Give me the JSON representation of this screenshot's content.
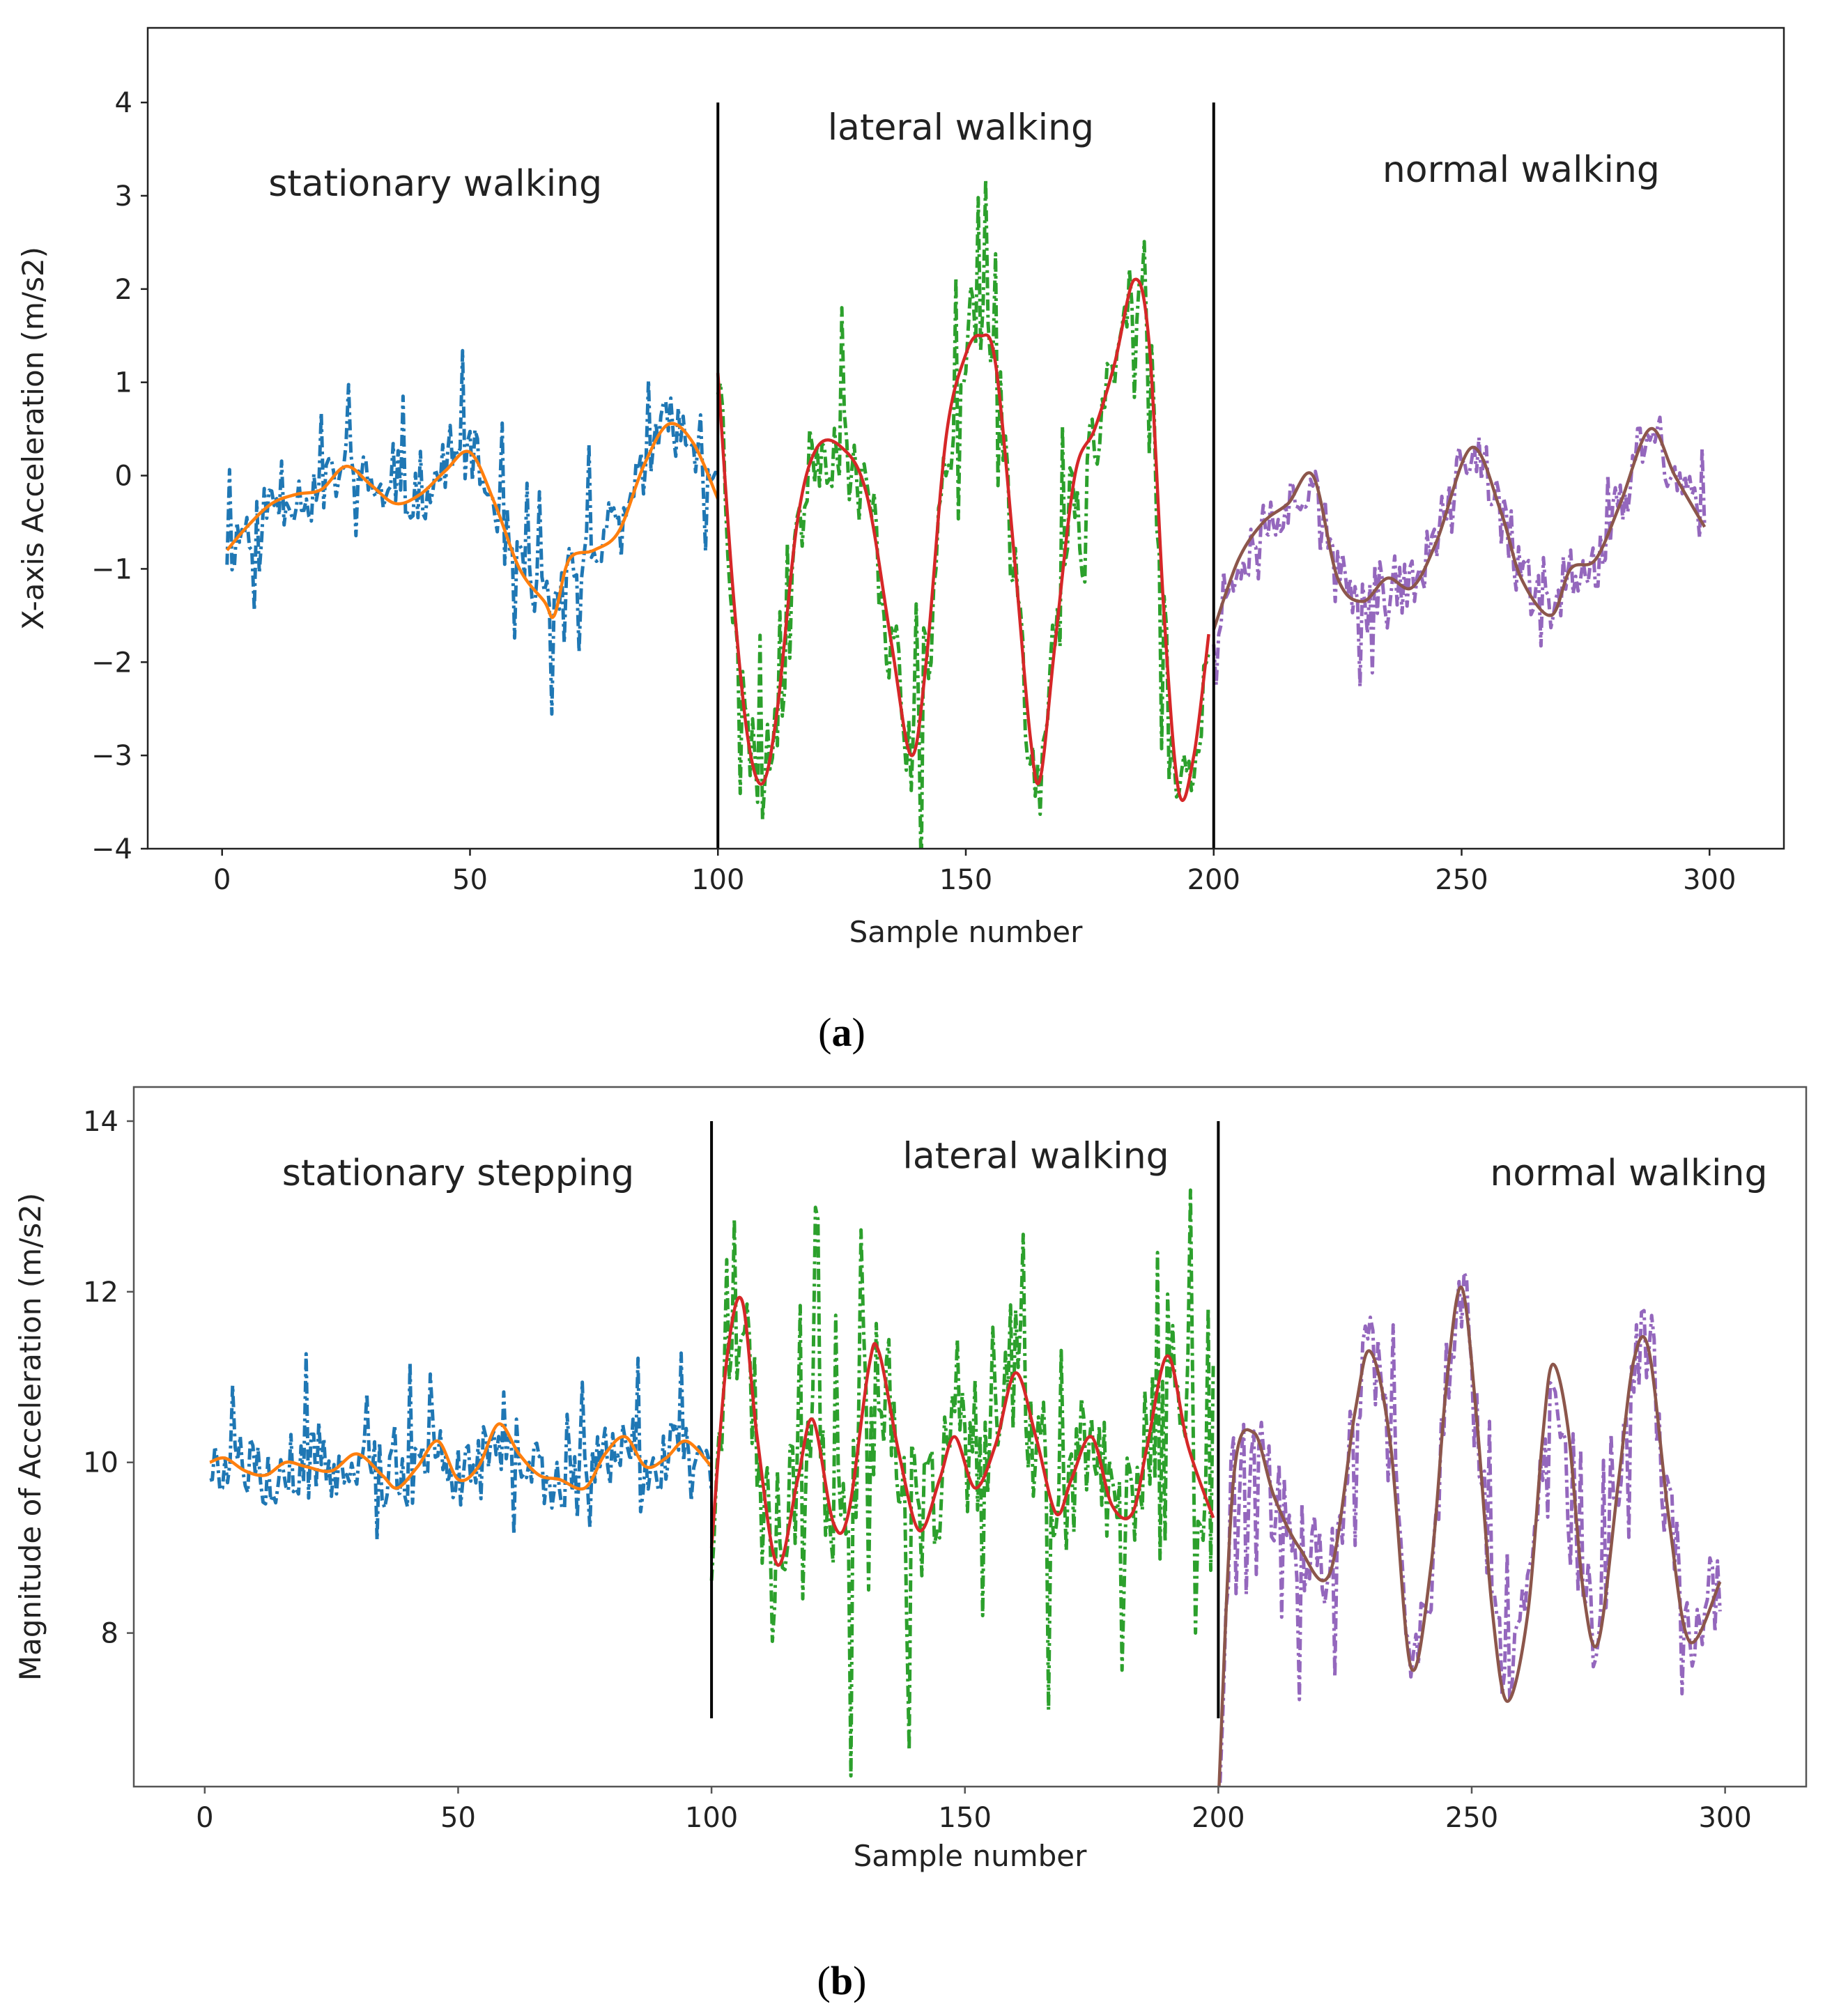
{
  "chart_data": [
    {
      "panel": "a",
      "type": "line",
      "caption_letter": "a",
      "caption_open": "(",
      "caption_close": ")",
      "xlabel": "Sample number",
      "ylabel": "X-axis Acceleration (m/s2)",
      "xlim": [
        -15,
        315
      ],
      "ylim": [
        -4,
        4.8
      ],
      "xticks": [
        0,
        50,
        100,
        150,
        200,
        250,
        300
      ],
      "yticks": [
        -4,
        -3,
        -2,
        -1,
        0,
        1,
        2,
        3,
        4
      ],
      "xtick_labels": [
        "0",
        "50",
        "100",
        "150",
        "200",
        "250",
        "300"
      ],
      "ytick_labels": [
        "−4",
        "−3",
        "−2",
        "−1",
        "0",
        "1",
        "2",
        "3",
        "4"
      ],
      "ymax_line": 4,
      "dividers": [
        100,
        200
      ],
      "annotations": [
        {
          "text": "stationary walking",
          "x": 43,
          "y": 3.0
        },
        {
          "text": "lateral walking",
          "x": 149,
          "y": 3.6
        },
        {
          "text": "normal walking",
          "x": 262,
          "y": 3.15
        }
      ],
      "raw_series": [
        {
          "name": "stationary walking (raw)",
          "color": "#1f77b4",
          "range": [
            1,
            100
          ],
          "noise": 0.3,
          "seed": 11,
          "spike_rate": 0.12,
          "spike_amp": 0.7
        },
        {
          "name": "lateral walking (raw)",
          "color": "#2ca02c",
          "range": [
            100,
            199
          ],
          "noise": 0.45,
          "seed": 23,
          "spike_rate": 0.1,
          "spike_amp": 1.2
        },
        {
          "name": "normal walking (raw)",
          "color": "#9467bd",
          "range": [
            200,
            299
          ],
          "noise": 0.32,
          "seed": 37,
          "spike_rate": 0.12,
          "spike_amp": 0.5
        }
      ],
      "smooth_series": [
        {
          "name": "stationary walking (filtered)",
          "color": "#ff7f0e",
          "x": [
            1,
            5,
            10,
            15,
            20,
            25,
            30,
            35,
            40,
            45,
            50,
            55,
            60,
            65,
            67,
            70,
            75,
            80,
            85,
            90,
            95,
            100
          ],
          "y": [
            -0.8,
            -0.55,
            -0.3,
            -0.2,
            -0.15,
            0.1,
            -0.1,
            -0.3,
            -0.2,
            0.05,
            0.25,
            -0.3,
            -1.0,
            -1.35,
            -1.5,
            -0.9,
            -0.8,
            -0.6,
            0.1,
            0.55,
            0.35,
            -0.25
          ]
        },
        {
          "name": "lateral walking (filtered)",
          "color": "#d62728",
          "x": [
            100,
            103,
            106,
            109,
            112,
            116,
            120,
            125,
            130,
            135,
            139,
            142,
            146,
            150,
            153,
            156,
            160,
            163,
            165,
            168,
            172,
            176,
            180,
            184,
            187,
            190,
            193,
            196,
            199
          ],
          "y": [
            1.1,
            -1.2,
            -2.8,
            -3.3,
            -2.5,
            -0.5,
            0.3,
            0.3,
            -0.2,
            -1.8,
            -3.0,
            -2.0,
            0.4,
            1.3,
            1.5,
            1.2,
            -1.0,
            -2.8,
            -3.25,
            -1.8,
            0.0,
            0.5,
            1.2,
            2.1,
            1.4,
            -1.5,
            -3.4,
            -3.0,
            -1.7
          ]
        },
        {
          "name": "normal walking (filtered)",
          "color": "#8c564b",
          "x": [
            200,
            205,
            210,
            215,
            220,
            225,
            230,
            235,
            240,
            245,
            252,
            258,
            262,
            268,
            272,
            277,
            282,
            288,
            293,
            299
          ],
          "y": [
            -1.65,
            -0.9,
            -0.5,
            -0.3,
            0.0,
            -1.1,
            -1.35,
            -1.1,
            -1.2,
            -0.7,
            0.3,
            -0.4,
            -1.1,
            -1.5,
            -1.0,
            -0.9,
            -0.3,
            0.5,
            0.0,
            -0.55
          ]
        }
      ]
    },
    {
      "panel": "b",
      "type": "line",
      "caption_letter": "b",
      "caption_open": "(",
      "caption_close": ")",
      "xlabel": "Sample number",
      "ylabel": "Magnitude of Acceleration (m/s2)",
      "xlim": [
        -14,
        316
      ],
      "ylim": [
        6.2,
        14.4
      ],
      "xticks": [
        0,
        50,
        100,
        150,
        200,
        250,
        300
      ],
      "yticks": [
        8,
        10,
        12,
        14
      ],
      "xtick_labels": [
        "0",
        "50",
        "100",
        "150",
        "200",
        "250",
        "300"
      ],
      "ytick_labels": [
        "8",
        "10",
        "12",
        "14"
      ],
      "dividers": [
        100,
        200
      ],
      "divider_range": [
        7.0,
        14.0
      ],
      "annotations": [
        {
          "text": "stationary  stepping",
          "x": 50,
          "y": 13.25
        },
        {
          "text": "lateral walking",
          "x": 164,
          "y": 13.45
        },
        {
          "text": "normal walking",
          "x": 281,
          "y": 13.25
        }
      ],
      "raw_series": [
        {
          "name": "stationary stepping (raw)",
          "color": "#1f77b4",
          "range": [
            1,
            100
          ],
          "noise": 0.4,
          "seed": 5,
          "spike_rate": 0.12,
          "spike_amp": 0.7
        },
        {
          "name": "lateral walking (raw)",
          "color": "#2ca02c",
          "range": [
            100,
            199
          ],
          "noise": 0.75,
          "seed": 17,
          "spike_rate": 0.13,
          "spike_amp": 1.7
        },
        {
          "name": "normal walking (raw)",
          "color": "#9467bd",
          "range": [
            200,
            299
          ],
          "noise": 0.55,
          "seed": 29,
          "spike_rate": 0.1,
          "spike_amp": 1.2
        }
      ],
      "smooth_series": [
        {
          "name": "stationary stepping (filtered)",
          "color": "#ff7f0e",
          "x": [
            1,
            4,
            8,
            12,
            16,
            20,
            25,
            30,
            35,
            38,
            42,
            46,
            50,
            54,
            58,
            62,
            66,
            70,
            75,
            79,
            83,
            87,
            91,
            95,
            100
          ],
          "y": [
            10.0,
            10.05,
            9.9,
            9.85,
            10.0,
            9.95,
            9.9,
            10.1,
            9.85,
            9.7,
            9.95,
            10.25,
            9.8,
            9.95,
            10.45,
            10.1,
            9.85,
            9.8,
            9.7,
            10.1,
            10.3,
            9.95,
            10.05,
            10.25,
            9.95
          ]
        },
        {
          "name": "lateral walking (filtered)",
          "color": "#d62728",
          "x": [
            100,
            103,
            106,
            109,
            113,
            117,
            120,
            124,
            127,
            131,
            133,
            137,
            141,
            145,
            148,
            152,
            156,
            160,
            164,
            168,
            171,
            175,
            179,
            183,
            186,
            190,
            194,
            199
          ],
          "y": [
            9.0,
            11.2,
            11.9,
            10.3,
            8.8,
            9.8,
            10.5,
            9.3,
            9.4,
            11.1,
            11.3,
            10.1,
            9.2,
            9.8,
            10.3,
            9.7,
            10.2,
            11.05,
            10.3,
            9.4,
            9.8,
            10.3,
            9.5,
            9.4,
            10.2,
            11.25,
            10.2,
            9.35
          ]
        },
        {
          "name": "normal walking (filtered)",
          "color": "#8c564b",
          "x": [
            200,
            203,
            207,
            211,
            216,
            222,
            227,
            230,
            234,
            238,
            242,
            245,
            248,
            251,
            254,
            257,
            261,
            264,
            266,
            269,
            272,
            275,
            279,
            282,
            285,
            289,
            293,
            299
          ],
          "y": [
            6.0,
            9.8,
            10.35,
            9.6,
            9.0,
            8.7,
            10.6,
            11.3,
            10.2,
            7.6,
            8.8,
            10.9,
            12.05,
            10.5,
            8.3,
            7.2,
            8.2,
            10.3,
            11.15,
            10.4,
            8.5,
            7.9,
            9.8,
            11.2,
            11.3,
            9.3,
            7.9,
            8.6
          ]
        }
      ]
    }
  ]
}
